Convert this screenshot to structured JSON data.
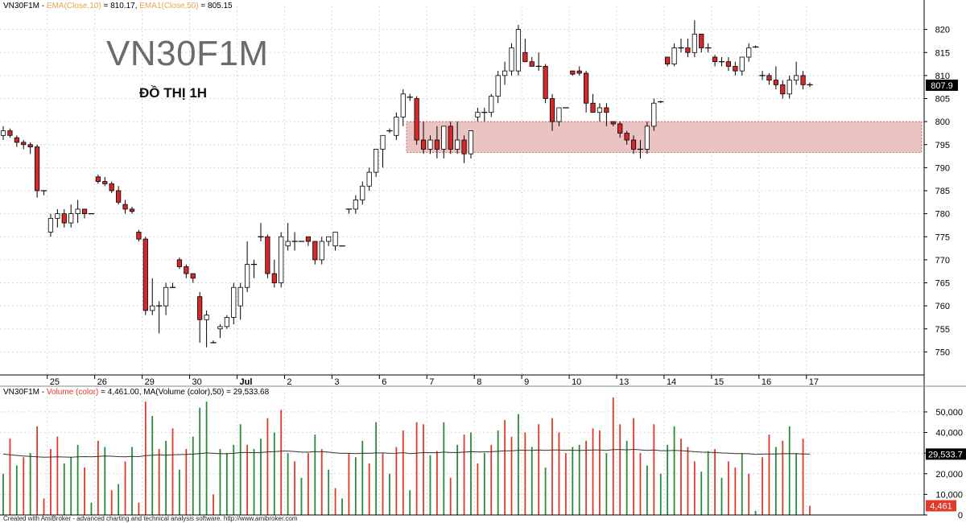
{
  "price_legend": {
    "ticker": "VN30F1M",
    "ema10_label": "EMA(Close,10)",
    "ema10_value": "= 810.17,",
    "ema50_label": "EMA1(Close,50)",
    "ema50_value": "= 805.15"
  },
  "volume_legend": {
    "ticker": "VN30F1M",
    "vol_label": "Volume (color)",
    "vol_value": "= 4,461.00,",
    "ma_label": "MA(Volume (color),50)",
    "ma_value": "= 29,533.68"
  },
  "big_title": "VN30F1M",
  "sub_title": "ĐỒ THỊ 1H",
  "footer": "Created with AmiBroker - advanced charting and technical analysis software. http://www.amibroker.com",
  "colors": {
    "up": "#ffffff",
    "down": "#d62828",
    "up_volume": "#2a8a3a",
    "down_volume": "#e03a2a",
    "zone": "#e6b8b8",
    "grid": "#d8d8d8"
  },
  "chart_data": [
    {
      "type": "candlestick",
      "ylim": [
        745,
        825
      ],
      "y_ticks": [
        750,
        755,
        760,
        765,
        770,
        775,
        780,
        785,
        790,
        795,
        800,
        805,
        810,
        815,
        820
      ],
      "x_ticks": [
        {
          "label": "25",
          "bar": 7
        },
        {
          "label": "26",
          "bar": 14
        },
        {
          "label": "29",
          "bar": 21
        },
        {
          "label": "30",
          "bar": 28
        },
        {
          "label": "Jul",
          "bar": 35
        },
        {
          "label": "2",
          "bar": 42
        },
        {
          "label": "3",
          "bar": 49
        },
        {
          "label": "6",
          "bar": 56
        },
        {
          "label": "7",
          "bar": 63
        },
        {
          "label": "8",
          "bar": 70
        },
        {
          "label": "9",
          "bar": 77
        },
        {
          "label": "10",
          "bar": 84
        },
        {
          "label": "13",
          "bar": 91
        },
        {
          "label": "14",
          "bar": 98
        },
        {
          "label": "15",
          "bar": 105
        },
        {
          "label": "16",
          "bar": 112
        },
        {
          "label": "17",
          "bar": 119
        }
      ],
      "last_price_label": "807.9",
      "last_price": 807.9,
      "zone": {
        "from_bar": 60,
        "to_bar": 135,
        "low": 793.3,
        "high": 800.0
      },
      "candles": [
        [
          797,
          799,
          796,
          798
        ],
        [
          798,
          798.5,
          796.5,
          797
        ],
        [
          796.5,
          797,
          794.5,
          795.5
        ],
        [
          795.5,
          796,
          794,
          795
        ],
        [
          795,
          795.5,
          793,
          794.5
        ],
        [
          794.5,
          795,
          783.5,
          785
        ],
        [
          785,
          785,
          784,
          785
        ],
        [
          776,
          780,
          775,
          779
        ],
        [
          779,
          781,
          777,
          780
        ],
        [
          780,
          781,
          777,
          778
        ],
        [
          778,
          782,
          777,
          780
        ],
        [
          780,
          783,
          778,
          781
        ],
        [
          781,
          781,
          779,
          780
        ],
        [
          780,
          780,
          780,
          780
        ],
        [
          788,
          788.5,
          786.5,
          787
        ],
        [
          787,
          788,
          786,
          786.5
        ],
        [
          786.5,
          787,
          784.5,
          785
        ],
        [
          785,
          786,
          782,
          782.5
        ],
        [
          782,
          783,
          780,
          781
        ],
        [
          781,
          781.5,
          780,
          780.5
        ],
        [
          776,
          776.5,
          774,
          774.5
        ],
        [
          774.5,
          775,
          758,
          759
        ],
        [
          759,
          766,
          758,
          760
        ],
        [
          760,
          761,
          754,
          760
        ],
        [
          760,
          765,
          758,
          764
        ],
        [
          764,
          765,
          764,
          764
        ],
        [
          770,
          770.5,
          768,
          768.5
        ],
        [
          768.5,
          769,
          766,
          767
        ],
        [
          767,
          767,
          765,
          766
        ],
        [
          762,
          763,
          752,
          757
        ],
        [
          757,
          759,
          751,
          758
        ],
        [
          752,
          752.5,
          752,
          752
        ],
        [
          755,
          756,
          753,
          755.5
        ],
        [
          755.5,
          758,
          755,
          757.5
        ],
        [
          757.5,
          765,
          756,
          764
        ],
        [
          760,
          765,
          757,
          764
        ],
        [
          764,
          774,
          763,
          769
        ],
        [
          769,
          770,
          766,
          769
        ],
        [
          775,
          778,
          774,
          775
        ],
        [
          775,
          775.5,
          766,
          767
        ],
        [
          767,
          770,
          764,
          765
        ],
        [
          765,
          776,
          764,
          775
        ],
        [
          773,
          778,
          772,
          774
        ],
        [
          774,
          776,
          772,
          774
        ],
        [
          774,
          774,
          774,
          774
        ],
        [
          775,
          775,
          773,
          774
        ],
        [
          774,
          774,
          769,
          770
        ],
        [
          770,
          775,
          769,
          774
        ],
        [
          774,
          775,
          773,
          775
        ],
        [
          773,
          776,
          772,
          776
        ],
        [
          773,
          773,
          773,
          773
        ],
        [
          781,
          781,
          780,
          781
        ],
        [
          781,
          784,
          780,
          783
        ],
        [
          783,
          787,
          782,
          786
        ],
        [
          786,
          790,
          785,
          789
        ],
        [
          789,
          794,
          788,
          794
        ],
        [
          794,
          797,
          790,
          797
        ],
        [
          798,
          798.5,
          797.5,
          798
        ],
        [
          797,
          802,
          796,
          801
        ],
        [
          801,
          807,
          799,
          806
        ],
        [
          805,
          806,
          804.5,
          805.3
        ],
        [
          805,
          805.5,
          795,
          796
        ],
        [
          796,
          800,
          793,
          794
        ],
        [
          794,
          797,
          793,
          796
        ],
        [
          796,
          799,
          792,
          794
        ],
        [
          794,
          799,
          792,
          799
        ],
        [
          799,
          800,
          793,
          794
        ],
        [
          794,
          800,
          793,
          796
        ],
        [
          796,
          797,
          791,
          793
        ],
        [
          793,
          798,
          792,
          798
        ],
        [
          801,
          803,
          800,
          802
        ],
        [
          802,
          803,
          800,
          802
        ],
        [
          802,
          806,
          801,
          805.5
        ],
        [
          805.5,
          811,
          804,
          810
        ],
        [
          810,
          813,
          808,
          811
        ],
        [
          811,
          817,
          810,
          816
        ],
        [
          811,
          821,
          810,
          820
        ],
        [
          815,
          818,
          813,
          813
        ],
        [
          813,
          814,
          812,
          812
        ],
        [
          812,
          815,
          811,
          812
        ],
        [
          812,
          812.5,
          804,
          805
        ],
        [
          805,
          806,
          798,
          800
        ],
        [
          800,
          803,
          799,
          803
        ],
        [
          803,
          803,
          803,
          803
        ],
        [
          811,
          811,
          810,
          810.3
        ],
        [
          811,
          812,
          810,
          810.5
        ],
        [
          810.5,
          811,
          802,
          804
        ],
        [
          804,
          806,
          802,
          802
        ],
        [
          802,
          804,
          800,
          803
        ],
        [
          803,
          804,
          799,
          802
        ],
        [
          800,
          800,
          799,
          799.5
        ],
        [
          799.5,
          800,
          796.5,
          797.5
        ],
        [
          797.5,
          798,
          795,
          796
        ],
        [
          796,
          797,
          793,
          794
        ],
        [
          794,
          796,
          792,
          794
        ],
        [
          794,
          800,
          793,
          799
        ],
        [
          799,
          805,
          798,
          804
        ],
        [
          804,
          804.5,
          804,
          804.3
        ],
        [
          814,
          814,
          812,
          812.5
        ],
        [
          812.5,
          817,
          812,
          816
        ],
        [
          816,
          818,
          815,
          816
        ],
        [
          816,
          818,
          814,
          815
        ],
        [
          815,
          822,
          814,
          819
        ],
        [
          819,
          819,
          815,
          816
        ],
        [
          816,
          817,
          815,
          816
        ],
        [
          814,
          814.5,
          812,
          813
        ],
        [
          813,
          814,
          812,
          813
        ],
        [
          813,
          814,
          811,
          812
        ],
        [
          812,
          813,
          810,
          811
        ],
        [
          811,
          814,
          810,
          814
        ],
        [
          814,
          817,
          813,
          816
        ],
        [
          816,
          816.5,
          816,
          816.2
        ],
        [
          810,
          811,
          809,
          810
        ],
        [
          810,
          810.5,
          808,
          809
        ],
        [
          809,
          812,
          807,
          808
        ],
        [
          808,
          809,
          805,
          806
        ],
        [
          806,
          810,
          805,
          809
        ],
        [
          809,
          813,
          808,
          810
        ],
        [
          810,
          811,
          807,
          808
        ],
        [
          808,
          808.5,
          807.5,
          807.9
        ]
      ]
    },
    {
      "type": "bar",
      "title": "Volume",
      "ylim": [
        0,
        57000
      ],
      "y_ticks": [
        {
          "value": 0,
          "label": "0"
        },
        {
          "value": 10000,
          "label": "10,000"
        },
        {
          "value": 20000,
          "label": "20,000"
        },
        {
          "value": 30000,
          "label": "30,000"
        },
        {
          "value": 40000,
          "label": "40,000"
        },
        {
          "value": 50000,
          "label": "50,000"
        }
      ],
      "ma_label": "29,533.7",
      "ma_value": 29533.7,
      "last_volume_label": "4,461",
      "last_volume": 4461,
      "values": [
        20000,
        37000,
        24000,
        28000,
        30000,
        43000,
        8000,
        32000,
        38000,
        25000,
        28000,
        34000,
        23000,
        6000,
        36000,
        33000,
        12000,
        15000,
        26000,
        33000,
        6000,
        55000,
        48000,
        32000,
        36000,
        42000,
        22000,
        32000,
        38000,
        52000,
        55000,
        10000,
        32000,
        30000,
        34000,
        44000,
        34000,
        32000,
        37000,
        47000,
        40000,
        51000,
        30000,
        26000,
        18000,
        30000,
        39000,
        32000,
        22000,
        13000,
        8000,
        30000,
        28000,
        36000,
        25000,
        45000,
        30000,
        20000,
        33000,
        41000,
        12000,
        45000,
        44000,
        29000,
        31000,
        45000,
        18000,
        34000,
        39000,
        40000,
        25000,
        30000,
        34000,
        41000,
        46000,
        38000,
        49000,
        40000,
        33000,
        44000,
        23000,
        47000,
        40000,
        30000,
        33000,
        34000,
        36000,
        42000,
        41000,
        30000,
        57000,
        44000,
        36000,
        47000,
        30000,
        24000,
        44000,
        20000,
        34000,
        43000,
        37000,
        33000,
        26000,
        21000,
        31000,
        32000,
        18000,
        26000,
        23000,
        30000,
        20000,
        2000,
        28000,
        39000,
        33000,
        36000,
        43000,
        30000,
        37000,
        4461
      ],
      "colors": [
        "up",
        "down",
        "up",
        "down",
        "up",
        "down",
        "down",
        "down",
        "down",
        "up",
        "up",
        "up",
        "down",
        "up",
        "down",
        "up",
        "down",
        "up",
        "down",
        "up",
        "down",
        "down",
        "up",
        "down",
        "up",
        "down",
        "up",
        "down",
        "up",
        "up",
        "up",
        "down",
        "up",
        "up",
        "up",
        "up",
        "down",
        "up",
        "up",
        "down",
        "up",
        "down",
        "up",
        "down",
        "up",
        "down",
        "up",
        "down",
        "up",
        "down",
        "up",
        "down",
        "up",
        "up",
        "down",
        "up",
        "down",
        "up",
        "down",
        "down",
        "up",
        "down",
        "down",
        "up",
        "down",
        "up",
        "down",
        "up",
        "down",
        "up",
        "down",
        "up",
        "down",
        "up",
        "down",
        "down",
        "up",
        "down",
        "up",
        "down",
        "up",
        "down",
        "down",
        "down",
        "up",
        "up",
        "down",
        "down",
        "down",
        "up",
        "down",
        "down",
        "up",
        "down",
        "down",
        "up",
        "down",
        "up",
        "up",
        "up",
        "down",
        "down",
        "down",
        "up",
        "up",
        "down",
        "up",
        "down",
        "down",
        "up",
        "down",
        "up",
        "down",
        "down",
        "up",
        "down",
        "up",
        "up",
        "down",
        "down"
      ],
      "ma": [
        29500,
        29200,
        28900,
        28600,
        28400,
        28200,
        28000,
        28100,
        28200,
        28100,
        28000,
        28200,
        28300,
        28200,
        28400,
        28600,
        28500,
        28300,
        28200,
        28400,
        28300,
        28800,
        29000,
        29200,
        29000,
        29200,
        29300,
        29400,
        29500,
        29800,
        30100,
        29900,
        29700,
        29700,
        29900,
        30300,
        30300,
        30200,
        30300,
        30600,
        30700,
        31000,
        31000,
        30800,
        30500,
        30500,
        30700,
        30700,
        30500,
        30100,
        29900,
        29900,
        29800,
        30000,
        29900,
        30100,
        30100,
        29900,
        30000,
        30200,
        29800,
        30000,
        30300,
        30200,
        30200,
        30500,
        30300,
        30300,
        30500,
        30700,
        30600,
        30600,
        30700,
        30900,
        31100,
        31100,
        31400,
        31400,
        31300,
        31500,
        31300,
        31500,
        31500,
        31400,
        31400,
        31300,
        31400,
        31500,
        31500,
        31300,
        31700,
        31700,
        31600,
        31800,
        31600,
        31300,
        31500,
        31200,
        31200,
        31300,
        31200,
        31000,
        30700,
        30500,
        30400,
        30300,
        30100,
        30000,
        29800,
        29800,
        29700,
        29400,
        29500,
        29600,
        29600,
        29700,
        29800,
        29700,
        29600,
        29500
      ]
    }
  ]
}
